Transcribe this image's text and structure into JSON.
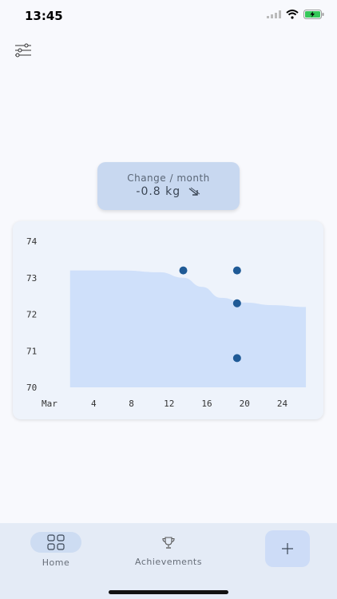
{
  "status": {
    "time": "13:45"
  },
  "summary": {
    "label": "Change / month",
    "value": "-0.8 kg",
    "trend_icon": "arrow-down-right-icon"
  },
  "chart_data": {
    "type": "scatter",
    "x_start_label": "Mar",
    "x_tick_labels": [
      "4",
      "8",
      "12",
      "16",
      "20",
      "24"
    ],
    "x_ticks": [
      4,
      8,
      12,
      16,
      20,
      24
    ],
    "y_ticks": [
      70,
      71,
      72,
      73,
      74
    ],
    "xlim": [
      0,
      27
    ],
    "ylim": [
      70,
      74
    ],
    "grid": false,
    "points": [
      {
        "x": 13.5,
        "y": 73.2
      },
      {
        "x": 19.2,
        "y": 73.2
      },
      {
        "x": 19.2,
        "y": 72.3
      },
      {
        "x": 19.2,
        "y": 70.8
      }
    ],
    "trend_band": [
      {
        "x": 1.5,
        "y": 73.2
      },
      {
        "x": 7,
        "y": 73.2
      },
      {
        "x": 11,
        "y": 73.15
      },
      {
        "x": 13.5,
        "y": 73.0
      },
      {
        "x": 15.5,
        "y": 72.75
      },
      {
        "x": 17.5,
        "y": 72.45
      },
      {
        "x": 20,
        "y": 72.32
      },
      {
        "x": 23,
        "y": 72.25
      },
      {
        "x": 26.5,
        "y": 72.2
      }
    ],
    "colors": {
      "point": "#1f5a96",
      "area": "#cfe0fa"
    }
  },
  "tabs": [
    {
      "label": "Home",
      "icon": "grid-icon",
      "active": true
    },
    {
      "label": "Achievements",
      "icon": "trophy-icon",
      "active": false
    }
  ],
  "actions": {
    "add_icon": "plus-icon",
    "filter_icon": "sliders-icon"
  }
}
